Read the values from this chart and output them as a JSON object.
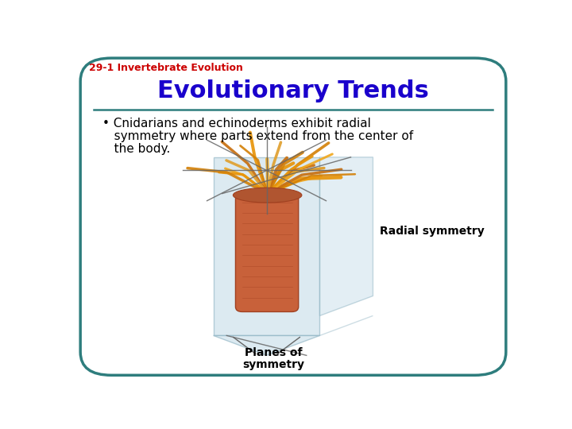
{
  "slide_bg": "#ffffff",
  "border_color": "#2e7d7d",
  "border_linewidth": 2.5,
  "tab_text": "29-1 Invertebrate Evolution",
  "tab_color": "#cc0000",
  "tab_fontsize": 9,
  "title_text": "Evolutionary Trends",
  "title_color": "#1a00cc",
  "title_fontsize": 22,
  "separator_color": "#2e7d7d",
  "separator_linewidth": 1.8,
  "bullet_line1": "• Cnidarians and echinoderms exhibit radial",
  "bullet_line2": "   symmetry where parts extend from the center of",
  "bullet_line3": "   the body.",
  "bullet_fontsize": 11,
  "bullet_color": "#000000",
  "label_radial": "Radial symmetry",
  "label_radial_fontsize": 10,
  "label_planes_line1": "Planes of",
  "label_planes_line2": "symmetry",
  "label_planes_fontsize": 10,
  "plane_color": "#c5dde8",
  "plane_alpha": 0.6,
  "plane_edge": "#8ab0c0",
  "cross_color": "#666666",
  "tentacle_colors": [
    "#e8950a",
    "#d4820a",
    "#c87010",
    "#e0a030",
    "#f0a820"
  ],
  "body_color": "#c8613a",
  "body_edge": "#a04020"
}
